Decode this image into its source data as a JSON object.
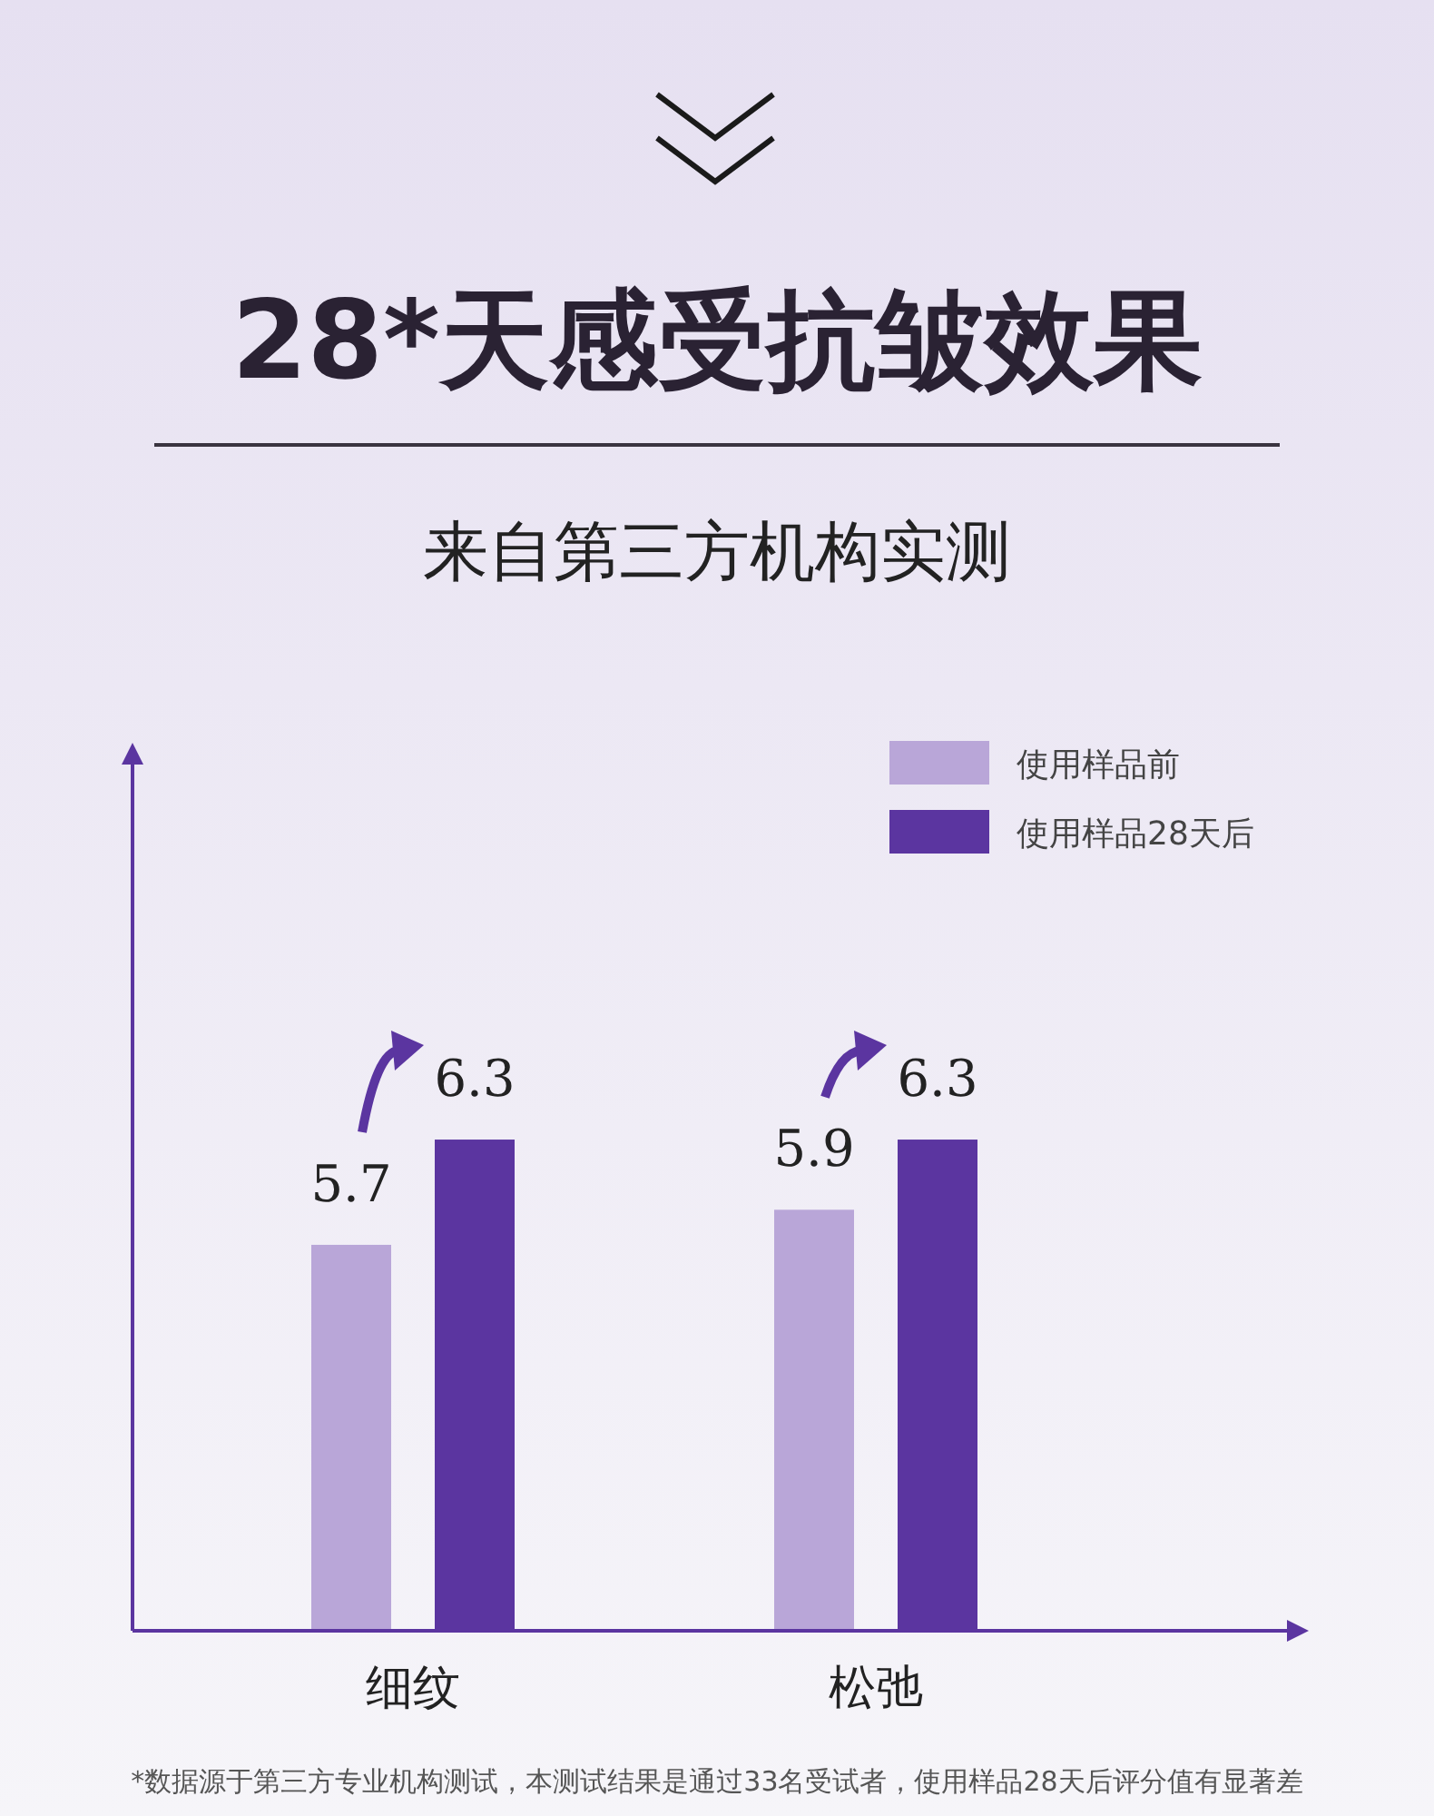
{
  "chart_data": {
    "type": "bar",
    "title": "28*天感受抗皱效果",
    "subtitle": "来自第三方机构实测",
    "categories": [
      "细纹",
      "松弛"
    ],
    "series": [
      {
        "name": "使用样品前",
        "color": "#b9a6d8",
        "values": [
          5.7,
          5.9
        ]
      },
      {
        "name": "使用样品28天后",
        "color": "#5b35a0",
        "values": [
          6.3,
          6.3
        ]
      }
    ],
    "ylim": [
      3.5,
      8.5
    ],
    "data_labels": true,
    "legend": "top right",
    "annotations": [
      "*数据源于第三方专业机构测试，本测试结果是通过33名受试者，使用样品28天后评分值有显著差"
    ]
  }
}
